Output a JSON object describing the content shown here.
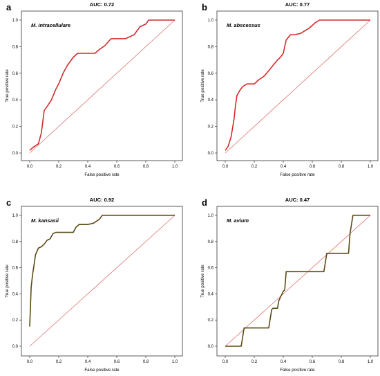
{
  "chart_data": [
    {
      "type": "line",
      "panel_label": "a",
      "title": "AUC: 0.72",
      "annotation": "M. intracellulare",
      "xlabel": "False positive rate",
      "ylabel": "True positive rate",
      "xlim": [
        0,
        1
      ],
      "ylim": [
        0,
        1
      ],
      "xticks": [
        "0.0",
        "0.2",
        "0.4",
        "0.6",
        "0.8",
        "1.0"
      ],
      "yticks": [
        "0.0",
        "0.2",
        "0.4",
        "0.6",
        "0.8",
        "1.0"
      ],
      "grid": false,
      "colors": {
        "curve": "#d42a2a",
        "diagonal": "#e07070",
        "background": "#ffffff"
      },
      "series": [
        {
          "x": [
            0.0,
            0.02,
            0.06,
            0.08,
            0.1,
            0.12,
            0.15,
            0.18,
            0.2,
            0.23,
            0.26,
            0.3,
            0.33,
            0.4,
            0.45,
            0.47,
            0.52,
            0.56,
            0.62,
            0.64,
            0.66,
            0.72,
            0.76,
            0.8,
            0.82,
            1.0
          ],
          "y": [
            0.02,
            0.04,
            0.07,
            0.15,
            0.32,
            0.35,
            0.4,
            0.48,
            0.52,
            0.6,
            0.66,
            0.72,
            0.75,
            0.75,
            0.75,
            0.77,
            0.81,
            0.86,
            0.86,
            0.86,
            0.86,
            0.89,
            0.95,
            0.97,
            1.0,
            1.0
          ]
        }
      ],
      "reference_line": {
        "x": [
          0,
          1
        ],
        "y": [
          0,
          1
        ]
      }
    },
    {
      "type": "line",
      "panel_label": "b",
      "title": "AUC: 0.77",
      "annotation": "M. abscessus",
      "xlabel": "False positive rate",
      "ylabel": "True positive rate",
      "xlim": [
        0,
        1
      ],
      "ylim": [
        0,
        1
      ],
      "xticks": [
        "0.0",
        "0.2",
        "0.4",
        "0.6",
        "0.8",
        "1.0"
      ],
      "yticks": [
        "0.0",
        "0.2",
        "0.4",
        "0.6",
        "0.8",
        "1.0"
      ],
      "grid": false,
      "colors": {
        "curve": "#d42a2a",
        "diagonal": "#e07070",
        "background": "#ffffff"
      },
      "series": [
        {
          "x": [
            0.0,
            0.02,
            0.04,
            0.06,
            0.07,
            0.08,
            0.1,
            0.12,
            0.15,
            0.2,
            0.23,
            0.27,
            0.3,
            0.33,
            0.36,
            0.38,
            0.4,
            0.42,
            0.45,
            0.48,
            0.52,
            0.55,
            0.58,
            0.62,
            0.65,
            1.0
          ],
          "y": [
            0.02,
            0.05,
            0.12,
            0.25,
            0.35,
            0.43,
            0.47,
            0.5,
            0.52,
            0.52,
            0.55,
            0.58,
            0.62,
            0.66,
            0.7,
            0.72,
            0.75,
            0.85,
            0.89,
            0.89,
            0.9,
            0.92,
            0.94,
            0.98,
            1.0,
            1.0
          ]
        }
      ],
      "reference_line": {
        "x": [
          0,
          1
        ],
        "y": [
          0,
          1
        ]
      }
    },
    {
      "type": "line",
      "panel_label": "c",
      "title": "AUC: 0.92",
      "annotation": "M. kansasii",
      "xlabel": "False positive rate",
      "ylabel": "True positive rate",
      "xlim": [
        0,
        1
      ],
      "ylim": [
        0,
        1
      ],
      "xticks": [
        "0.0",
        "0.2",
        "0.4",
        "0.6",
        "0.8",
        "1.0"
      ],
      "yticks": [
        "0.0",
        "0.2",
        "0.4",
        "0.6",
        "0.8",
        "1.0"
      ],
      "grid": false,
      "colors": {
        "curve": "#5a4a14",
        "diagonal": "#e07070",
        "background": "#ffffff"
      },
      "series": [
        {
          "x": [
            0.0,
            0.005,
            0.01,
            0.02,
            0.03,
            0.04,
            0.06,
            0.08,
            0.1,
            0.12,
            0.14,
            0.16,
            0.18,
            0.22,
            0.3,
            0.32,
            0.34,
            0.4,
            0.44,
            0.48,
            0.5,
            0.6,
            0.8,
            1.0
          ],
          "y": [
            0.15,
            0.3,
            0.45,
            0.55,
            0.62,
            0.7,
            0.75,
            0.76,
            0.78,
            0.81,
            0.82,
            0.86,
            0.87,
            0.87,
            0.87,
            0.91,
            0.93,
            0.93,
            0.94,
            0.97,
            1.0,
            1.0,
            1.0,
            1.0
          ]
        }
      ],
      "reference_line": {
        "x": [
          0,
          1
        ],
        "y": [
          0,
          1
        ]
      }
    },
    {
      "type": "line",
      "panel_label": "d",
      "title": "AUC: 0.47",
      "annotation": "M. avium",
      "xlabel": "False positive rate",
      "ylabel": "True positive rate",
      "xlim": [
        0,
        1
      ],
      "ylim": [
        0,
        1
      ],
      "xticks": [
        "0.0",
        "0.2",
        "0.4",
        "0.6",
        "0.8",
        "1.0"
      ],
      "yticks": [
        "0.0",
        "0.2",
        "0.4",
        "0.6",
        "0.8",
        "1.0"
      ],
      "grid": false,
      "colors": {
        "curve": "#5a4a14",
        "diagonal": "#e07070",
        "background": "#ffffff"
      },
      "series": [
        {
          "x": [
            0.0,
            0.11,
            0.13,
            0.14,
            0.3,
            0.32,
            0.33,
            0.36,
            0.37,
            0.4,
            0.41,
            0.42,
            0.43,
            0.68,
            0.7,
            0.72,
            0.85,
            0.86,
            0.88,
            1.0
          ],
          "y": [
            0.0,
            0.0,
            0.14,
            0.14,
            0.14,
            0.28,
            0.29,
            0.29,
            0.35,
            0.42,
            0.43,
            0.57,
            0.57,
            0.57,
            0.71,
            0.71,
            0.71,
            0.86,
            1.0,
            1.0
          ]
        }
      ],
      "reference_line": {
        "x": [
          0,
          1
        ],
        "y": [
          0,
          1
        ]
      }
    }
  ]
}
